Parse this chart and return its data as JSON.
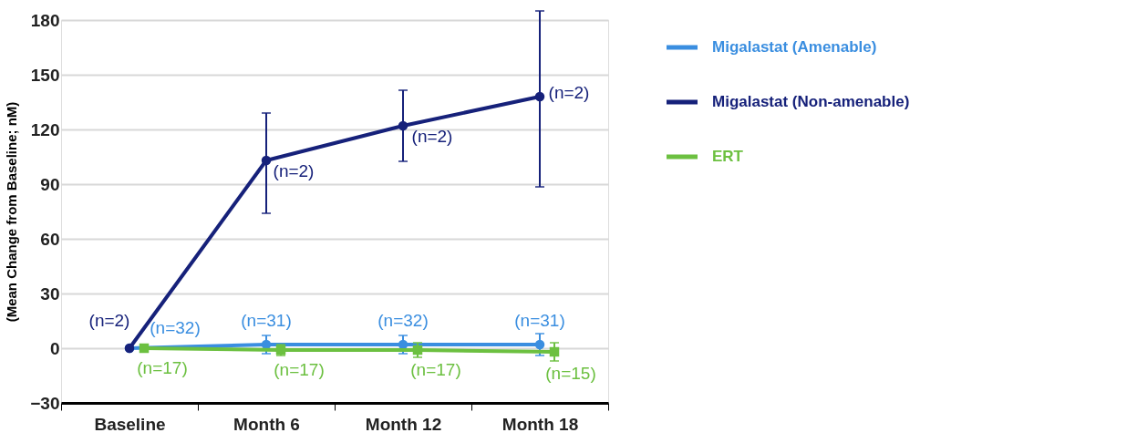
{
  "chart_data": {
    "type": "line",
    "ylabel": "(Mean Change from Baseline; nM)",
    "categories": [
      "Baseline",
      "Month 6",
      "Month 12",
      "Month 18"
    ],
    "ylim": [
      -30,
      180
    ],
    "yticks": [
      -30,
      0,
      30,
      60,
      90,
      120,
      150,
      180
    ],
    "grid": "y",
    "legend": "right",
    "line_style": "solid",
    "series": [
      {
        "name": "Migalastat (Amenable)",
        "color": "#3a8ee0",
        "marker": "circle",
        "values": [
          0,
          2,
          2,
          2
        ],
        "errors": [
          null,
          5,
          5,
          6
        ]
      },
      {
        "name": "Migalastat (Non-amenable)",
        "color": "#16217a",
        "marker": "circle",
        "values": [
          0,
          103,
          122,
          138
        ],
        "errors": [
          null,
          [
            74,
            129
          ],
          [
            102.5,
            141.5
          ],
          [
            88.5,
            185
          ]
        ]
      },
      {
        "name": "ERT",
        "color": "#6cc040",
        "marker": "square",
        "values": [
          0,
          -1,
          -1,
          -2
        ],
        "errors": [
          null,
          3,
          4,
          5
        ]
      }
    ],
    "annotations": [
      {
        "text": "(n=32)",
        "x": "Baseline",
        "y": 0
      },
      {
        "text": "(n=31)",
        "x": "Month 6",
        "y": 2
      },
      {
        "text": "(n=32)",
        "x": "Month 12",
        "y": 2
      },
      {
        "text": "(n=31)",
        "x": "Month 18",
        "y": 2
      },
      {
        "text": "(n=2)",
        "x": "Baseline",
        "y": 0
      },
      {
        "text": "(n=2)",
        "x": "Month 6",
        "y": 103
      },
      {
        "text": "(n=2)",
        "x": "Month 12",
        "y": 122
      },
      {
        "text": "(n=2)",
        "x": "Month 18",
        "y": 138
      },
      {
        "text": "(n=17)",
        "x": "Baseline",
        "y": 0
      },
      {
        "text": "(n=17)",
        "x": "Month 6",
        "y": -1
      },
      {
        "text": "(n=17)",
        "x": "Month 12",
        "y": -1
      },
      {
        "text": "(n=15)",
        "x": "Month 18",
        "y": -2
      }
    ]
  }
}
